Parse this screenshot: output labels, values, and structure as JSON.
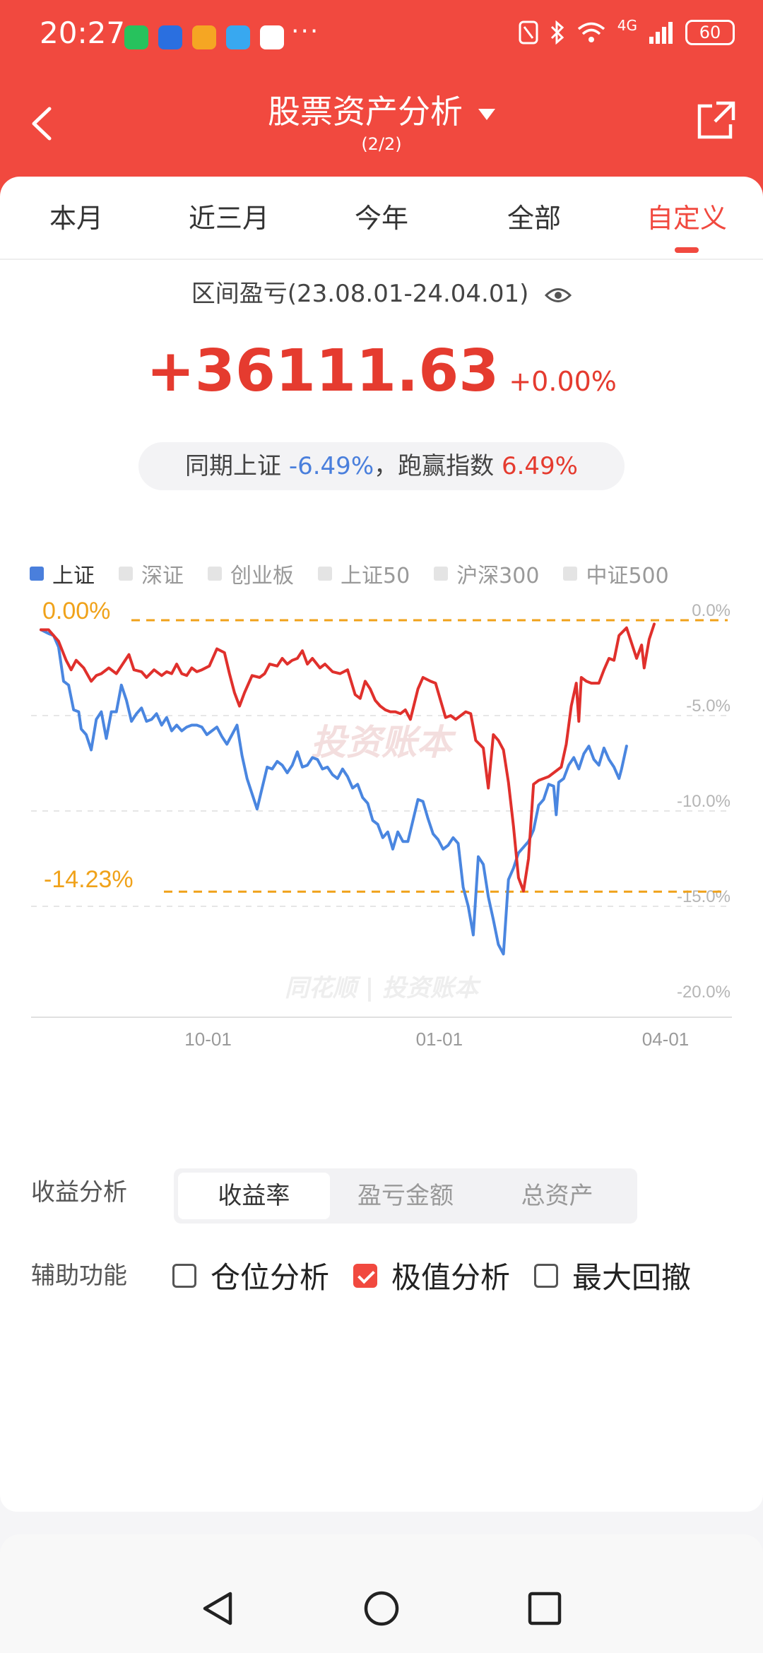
{
  "status_bar": {
    "time": "20:27",
    "network": "4G",
    "battery": "60",
    "more": "···"
  },
  "nav": {
    "title": "股票资产分析",
    "subtitle": "(2/2)"
  },
  "tabs": [
    {
      "label": "本月",
      "active": false
    },
    {
      "label": "近三月",
      "active": false
    },
    {
      "label": "今年",
      "active": false
    },
    {
      "label": "全部",
      "active": false
    },
    {
      "label": "自定义",
      "active": true
    }
  ],
  "summary": {
    "range_label": "区间盈亏(23.08.01-24.04.01)",
    "pnl": "+36111.63",
    "pnl_pct": "+0.00%",
    "compare_prefix": "同期上证",
    "compare_index_pct": "-6.49%",
    "compare_mid": "，跑赢指数",
    "compare_beat_pct": "6.49%"
  },
  "legend": [
    {
      "label": "上证",
      "active": true
    },
    {
      "label": "深证",
      "active": false
    },
    {
      "label": "创业板",
      "active": false
    },
    {
      "label": "上证50",
      "active": false
    },
    {
      "label": "沪深300",
      "active": false
    },
    {
      "label": "中证500",
      "active": false
    }
  ],
  "chart_data": {
    "type": "line",
    "x_ticks": [
      "10-01",
      "01-01",
      "04-01"
    ],
    "y_ticks": [
      "0.0%",
      "-5.0%",
      "-10.0%",
      "-15.0%",
      "-20.0%"
    ],
    "ylim": [
      -20,
      0
    ],
    "max_marker": {
      "label": "0.00%",
      "value": 0.0
    },
    "min_marker": {
      "label": "-14.23%",
      "value": -14.23
    },
    "watermark_center": "投资账本",
    "watermark_bottom": "同花顺 | 投资账本",
    "colors": {
      "portfolio": "#e0302c",
      "index": "#4a86e0",
      "marker": "#f0a21a"
    },
    "x_start_day": 0,
    "x_end_day": 244,
    "series": [
      {
        "name": "",
        "color": "#e0302c",
        "points": [
          [
            0,
            -0.5
          ],
          [
            3,
            -0.5
          ],
          [
            7,
            -1.1
          ],
          [
            10,
            -2.1
          ],
          [
            12,
            -2.6
          ],
          [
            14,
            -2.1
          ],
          [
            17,
            -2.5
          ],
          [
            20,
            -3.2
          ],
          [
            22,
            -2.9
          ],
          [
            24,
            -2.8
          ],
          [
            27,
            -2.5
          ],
          [
            30,
            -2.8
          ],
          [
            33,
            -2.2
          ],
          [
            35,
            -1.8
          ],
          [
            37,
            -2.6
          ],
          [
            40,
            -2.7
          ],
          [
            42,
            -3.0
          ],
          [
            45,
            -2.6
          ],
          [
            48,
            -2.9
          ],
          [
            50,
            -2.7
          ],
          [
            52,
            -2.8
          ],
          [
            54,
            -2.3
          ],
          [
            56,
            -2.8
          ],
          [
            58,
            -2.9
          ],
          [
            60,
            -2.5
          ],
          [
            62,
            -2.7
          ],
          [
            64,
            -2.6
          ],
          [
            67,
            -2.4
          ],
          [
            70,
            -1.5
          ],
          [
            73,
            -1.7
          ],
          [
            75,
            -2.8
          ],
          [
            77,
            -3.8
          ],
          [
            79,
            -4.5
          ],
          [
            81,
            -3.8
          ],
          [
            84,
            -2.9
          ],
          [
            87,
            -3.0
          ],
          [
            89,
            -2.8
          ],
          [
            91,
            -2.3
          ],
          [
            94,
            -2.4
          ],
          [
            96,
            -2.0
          ],
          [
            98,
            -2.3
          ],
          [
            100,
            -2.1
          ],
          [
            102,
            -2.0
          ],
          [
            104,
            -1.6
          ],
          [
            106,
            -2.3
          ],
          [
            108,
            -2.0
          ],
          [
            111,
            -2.5
          ],
          [
            113,
            -2.3
          ],
          [
            116,
            -2.7
          ],
          [
            119,
            -2.8
          ],
          [
            122,
            -2.6
          ],
          [
            125,
            -3.9
          ],
          [
            127,
            -4.1
          ],
          [
            129,
            -3.2
          ],
          [
            131,
            -3.6
          ],
          [
            133,
            -4.2
          ],
          [
            135,
            -4.5
          ],
          [
            137,
            -4.7
          ],
          [
            139,
            -4.8
          ],
          [
            141,
            -4.8
          ],
          [
            143,
            -4.9
          ],
          [
            145,
            -4.7
          ],
          [
            147,
            -5.2
          ],
          [
            150,
            -3.6
          ],
          [
            152,
            -3.0
          ],
          [
            155,
            -3.2
          ],
          [
            157,
            -3.3
          ],
          [
            159,
            -4.2
          ],
          [
            161,
            -5.1
          ],
          [
            163,
            -5.0
          ],
          [
            165,
            -5.2
          ],
          [
            167,
            -5.0
          ],
          [
            169,
            -4.8
          ],
          [
            171,
            -4.9
          ],
          [
            173,
            -6.3
          ],
          [
            176,
            -6.7
          ],
          [
            178,
            -8.8
          ],
          [
            180,
            -6.0
          ],
          [
            182,
            -6.3
          ],
          [
            184,
            -6.8
          ],
          [
            186,
            -8.5
          ],
          [
            188,
            -10.8
          ],
          [
            190,
            -13.5
          ],
          [
            192,
            -14.2
          ],
          [
            194,
            -12.5
          ],
          [
            196,
            -8.6
          ],
          [
            198,
            -8.4
          ],
          [
            202,
            -8.2
          ],
          [
            207,
            -7.7
          ],
          [
            209,
            -6.5
          ],
          [
            211,
            -4.5
          ],
          [
            213,
            -3.3
          ],
          [
            214,
            -5.3
          ],
          [
            215,
            -3.0
          ],
          [
            217,
            -3.2
          ],
          [
            219,
            -3.3
          ],
          [
            222,
            -3.3
          ],
          [
            224,
            -2.6
          ],
          [
            226,
            -2.0
          ],
          [
            228,
            -2.1
          ],
          [
            230,
            -0.8
          ],
          [
            233,
            -0.4
          ],
          [
            235,
            -1.2
          ],
          [
            237,
            -2.0
          ],
          [
            239,
            -1.3
          ],
          [
            240,
            -2.5
          ],
          [
            242,
            -1.0
          ],
          [
            244,
            -0.2
          ]
        ]
      },
      {
        "name": "上证",
        "color": "#4a86e0",
        "points": [
          [
            0,
            -0.5
          ],
          [
            3,
            -0.7
          ],
          [
            5,
            -0.8
          ],
          [
            7,
            -1.4
          ],
          [
            9,
            -3.2
          ],
          [
            11,
            -3.4
          ],
          [
            13,
            -4.7
          ],
          [
            15,
            -4.8
          ],
          [
            16,
            -5.7
          ],
          [
            18,
            -6.0
          ],
          [
            20,
            -6.8
          ],
          [
            22,
            -5.2
          ],
          [
            24,
            -4.8
          ],
          [
            26,
            -6.2
          ],
          [
            28,
            -4.8
          ],
          [
            30,
            -4.8
          ],
          [
            32,
            -3.4
          ],
          [
            34,
            -4.2
          ],
          [
            36,
            -5.3
          ],
          [
            38,
            -4.9
          ],
          [
            40,
            -4.6
          ],
          [
            42,
            -5.3
          ],
          [
            44,
            -5.2
          ],
          [
            46,
            -4.9
          ],
          [
            48,
            -5.5
          ],
          [
            50,
            -5.1
          ],
          [
            52,
            -5.8
          ],
          [
            54,
            -5.5
          ],
          [
            56,
            -5.8
          ],
          [
            58,
            -5.6
          ],
          [
            60,
            -5.5
          ],
          [
            62,
            -5.5
          ],
          [
            64,
            -5.6
          ],
          [
            66,
            -6.0
          ],
          [
            68,
            -5.8
          ],
          [
            70,
            -5.6
          ],
          [
            72,
            -6.1
          ],
          [
            74,
            -6.5
          ],
          [
            76,
            -6.0
          ],
          [
            78,
            -5.5
          ],
          [
            80,
            -7.1
          ],
          [
            82,
            -8.3
          ],
          [
            84,
            -9.1
          ],
          [
            86,
            -9.9
          ],
          [
            88,
            -8.8
          ],
          [
            90,
            -7.7
          ],
          [
            92,
            -7.8
          ],
          [
            94,
            -7.4
          ],
          [
            96,
            -7.6
          ],
          [
            98,
            -8.0
          ],
          [
            100,
            -7.6
          ],
          [
            102,
            -6.9
          ],
          [
            104,
            -7.7
          ],
          [
            106,
            -7.6
          ],
          [
            108,
            -7.2
          ],
          [
            110,
            -7.3
          ],
          [
            112,
            -7.8
          ],
          [
            114,
            -7.7
          ],
          [
            116,
            -8.1
          ],
          [
            118,
            -8.3
          ],
          [
            120,
            -7.8
          ],
          [
            122,
            -8.2
          ],
          [
            124,
            -8.8
          ],
          [
            126,
            -8.6
          ],
          [
            128,
            -9.3
          ],
          [
            130,
            -9.6
          ],
          [
            132,
            -10.5
          ],
          [
            134,
            -10.7
          ],
          [
            136,
            -11.4
          ],
          [
            138,
            -11.1
          ],
          [
            140,
            -12.0
          ],
          [
            142,
            -11.1
          ],
          [
            144,
            -11.6
          ],
          [
            146,
            -11.6
          ],
          [
            148,
            -10.5
          ],
          [
            150,
            -9.4
          ],
          [
            152,
            -9.5
          ],
          [
            154,
            -10.4
          ],
          [
            156,
            -11.2
          ],
          [
            158,
            -11.5
          ],
          [
            160,
            -12.0
          ],
          [
            162,
            -11.8
          ],
          [
            164,
            -11.4
          ],
          [
            166,
            -11.7
          ],
          [
            168,
            -14.0
          ],
          [
            170,
            -15.0
          ],
          [
            172,
            -16.5
          ],
          [
            174,
            -12.4
          ],
          [
            176,
            -12.8
          ],
          [
            178,
            -14.5
          ],
          [
            180,
            -15.7
          ],
          [
            182,
            -17.0
          ],
          [
            184,
            -17.5
          ],
          [
            186,
            -13.6
          ],
          [
            188,
            -13.0
          ],
          [
            190,
            -12.2
          ],
          [
            194,
            -11.6
          ],
          [
            196,
            -11.0
          ],
          [
            198,
            -9.7
          ],
          [
            200,
            -9.4
          ],
          [
            202,
            -8.6
          ],
          [
            204,
            -8.7
          ],
          [
            205,
            -10.2
          ],
          [
            206,
            -8.5
          ],
          [
            208,
            -8.3
          ],
          [
            210,
            -7.6
          ],
          [
            212,
            -7.2
          ],
          [
            214,
            -7.8
          ],
          [
            216,
            -7.0
          ],
          [
            218,
            -6.6
          ],
          [
            220,
            -7.3
          ],
          [
            222,
            -7.6
          ],
          [
            224,
            -6.7
          ],
          [
            226,
            -7.3
          ],
          [
            228,
            -7.7
          ],
          [
            230,
            -8.3
          ],
          [
            231,
            -7.8
          ],
          [
            233,
            -6.6
          ]
        ]
      }
    ]
  },
  "controls": {
    "analysis_label": "收益分析",
    "segments": [
      {
        "label": "收益率",
        "active": true
      },
      {
        "label": "盈亏金额",
        "active": false
      },
      {
        "label": "总资产",
        "active": false
      }
    ],
    "aux_label": "辅助功能",
    "checks": [
      {
        "label": "仓位分析",
        "checked": false
      },
      {
        "label": "极值分析",
        "checked": true
      },
      {
        "label": "最大回撤",
        "checked": false
      }
    ]
  },
  "icons": {
    "back": "chevron-left-icon",
    "share": "share-icon",
    "eye": "eye-icon",
    "nav_back": "triangle-back-icon",
    "nav_home": "circle-home-icon",
    "nav_recents": "square-recents-icon"
  }
}
